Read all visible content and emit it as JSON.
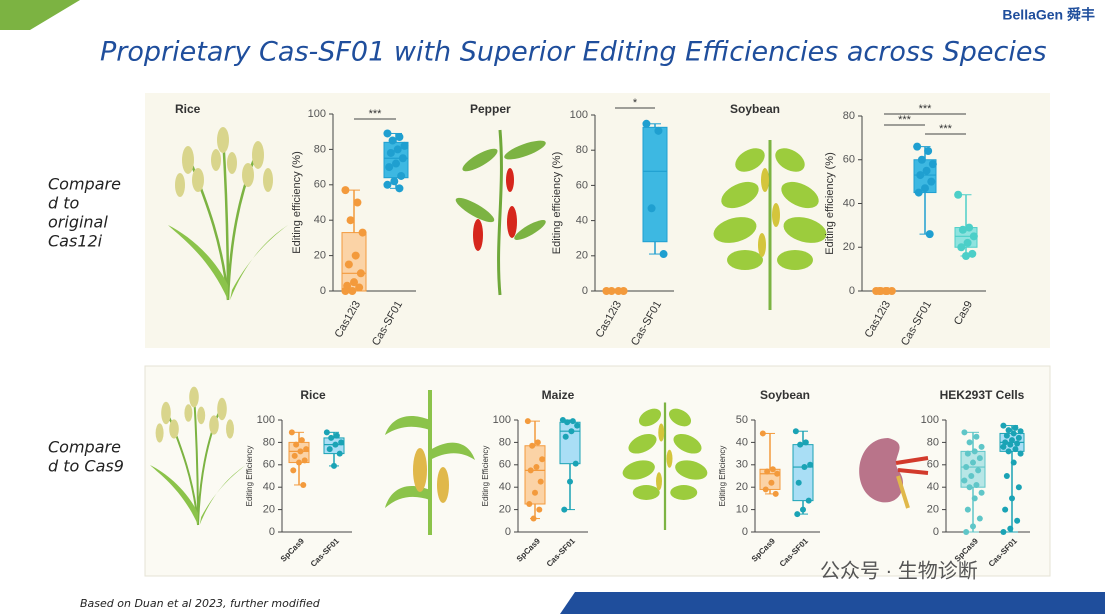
{
  "header": {
    "brand": "BellaGen 舜丰",
    "title": "Proprietary Cas-SF01 with Superior Editing Efficiencies across Species"
  },
  "row_labels": [
    {
      "lines": [
        "Compare",
        "d to",
        "original",
        "Cas12i"
      ]
    },
    {
      "lines": [
        "Compare",
        "d to Cas9"
      ]
    }
  ],
  "footnote": "Based on Duan et al 2023, further modified",
  "watermark": "公众号 · 生物诊断",
  "chart_data": [
    {
      "type": "box",
      "title": "Rice",
      "ylabel": "Editing efficiency (%)",
      "ylim": [
        0,
        100
      ],
      "yticks": [
        0,
        20,
        40,
        60,
        80,
        100
      ],
      "categories": [
        "Cas12i3",
        "Cas-SF01"
      ],
      "boxes": [
        {
          "min": 0,
          "q1": 0,
          "median": 10,
          "q3": 33,
          "max": 57,
          "color": "#f39a3c",
          "fill": "#fbd3a6",
          "points": [
            57,
            50,
            40,
            33,
            20,
            15,
            10,
            5,
            3,
            2,
            0,
            0
          ]
        },
        {
          "min": 58,
          "q1": 64,
          "median": 75,
          "q3": 84,
          "max": 89,
          "color": "#1f9fd0",
          "fill": "#3db8e2",
          "points": [
            89,
            87,
            85,
            82,
            80,
            78,
            75,
            72,
            70,
            65,
            62,
            60,
            58
          ]
        }
      ],
      "significance": [
        "***"
      ]
    },
    {
      "type": "box",
      "title": "Pepper",
      "ylabel": "Editing efficiency (%)",
      "ylim": [
        0,
        100
      ],
      "yticks": [
        0,
        20,
        40,
        60,
        80,
        100
      ],
      "categories": [
        "Cas12i3",
        "Cas-SF01"
      ],
      "boxes": [
        {
          "min": 0,
          "q1": 0,
          "median": 0,
          "q3": 0,
          "max": 0,
          "color": "#f39a3c",
          "fill": "#fbd3a6",
          "points": [
            0,
            0,
            0,
            0
          ]
        },
        {
          "min": 21,
          "q1": 28,
          "median": 68,
          "q3": 93,
          "max": 95,
          "color": "#1f9fd0",
          "fill": "#3db8e2",
          "points": [
            95,
            91,
            47,
            21
          ]
        }
      ],
      "significance": [
        "*"
      ]
    },
    {
      "type": "box",
      "title": "Soybean",
      "ylabel": "Editing efficiency (%)",
      "ylim": [
        0,
        80
      ],
      "yticks": [
        0,
        20,
        40,
        60,
        80
      ],
      "categories": [
        "Cas12i3",
        "Cas-SF01",
        "Cas9"
      ],
      "boxes": [
        {
          "min": 0,
          "q1": 0,
          "median": 0,
          "q3": 0,
          "max": 0,
          "color": "#f39a3c",
          "fill": "#fbd3a6",
          "points": [
            0,
            0,
            0,
            0,
            0,
            0
          ]
        },
        {
          "min": 26,
          "q1": 45,
          "median": 53,
          "q3": 60,
          "max": 66,
          "color": "#1f9fd0",
          "fill": "#3db8e2",
          "points": [
            66,
            64,
            60,
            58,
            55,
            53,
            50,
            47,
            45,
            26
          ]
        },
        {
          "min": 16,
          "q1": 20,
          "median": 25,
          "q3": 29,
          "max": 44,
          "color": "#4ccfc8",
          "fill": "#8fe3df",
          "points": [
            44,
            29,
            28,
            25,
            22,
            20,
            17,
            16
          ]
        }
      ],
      "significance": [
        "***",
        "***",
        "***"
      ]
    },
    {
      "type": "box",
      "title": "Rice",
      "ylabel": "Editing Efficiency",
      "ylim": [
        0,
        100
      ],
      "yticks": [
        0,
        20,
        40,
        60,
        80,
        100
      ],
      "categories": [
        "SpCas9",
        "Cas-SF01"
      ],
      "boxes": [
        {
          "min": 42,
          "q1": 62,
          "median": 72,
          "q3": 80,
          "max": 89,
          "color": "#f39a3c",
          "fill": "#fbd3a6",
          "points": [
            89,
            82,
            78,
            74,
            72,
            68,
            64,
            62,
            55,
            42
          ]
        },
        {
          "min": 59,
          "q1": 70,
          "median": 78,
          "q3": 84,
          "max": 89,
          "color": "#1aa3b5",
          "fill": "#a9def5",
          "points": [
            89,
            86,
            84,
            80,
            78,
            74,
            70,
            59
          ]
        }
      ],
      "significance": []
    },
    {
      "type": "box",
      "title": "Maize",
      "ylabel": "Editing Efficiency",
      "ylim": [
        0,
        100
      ],
      "yticks": [
        0,
        20,
        40,
        60,
        80,
        100
      ],
      "categories": [
        "SpCas9",
        "Cas-SF01"
      ],
      "boxes": [
        {
          "min": 12,
          "q1": 25,
          "median": 55,
          "q3": 77,
          "max": 99,
          "color": "#f39a3c",
          "fill": "#fbd3a6",
          "points": [
            99,
            80,
            77,
            65,
            58,
            55,
            45,
            35,
            25,
            20,
            12
          ]
        },
        {
          "min": 20,
          "q1": 61,
          "median": 90,
          "q3": 98,
          "max": 100,
          "color": "#1aa3b5",
          "fill": "#a9def5",
          "points": [
            100,
            99,
            98,
            95,
            90,
            85,
            61,
            45,
            20
          ]
        }
      ],
      "significance": []
    },
    {
      "type": "box",
      "title": "Soybean",
      "ylabel": "Editing Efficiency",
      "ylim": [
        0,
        50
      ],
      "yticks": [
        0,
        10,
        20,
        30,
        40,
        50
      ],
      "categories": [
        "SpCas9",
        "Cas-SF01"
      ],
      "boxes": [
        {
          "min": 17,
          "q1": 19,
          "median": 26,
          "q3": 28,
          "max": 44,
          "color": "#f39a3c",
          "fill": "#fbd3a6",
          "points": [
            44,
            28,
            27,
            26,
            22,
            19,
            17
          ]
        },
        {
          "min": 8,
          "q1": 14,
          "median": 29,
          "q3": 39,
          "max": 45,
          "color": "#1aa3b5",
          "fill": "#a9def5",
          "points": [
            45,
            40,
            39,
            30,
            29,
            22,
            14,
            10,
            8
          ]
        }
      ],
      "significance": []
    },
    {
      "type": "box",
      "title": "HEK293T Cells",
      "ylabel": "",
      "ylim": [
        0,
        100
      ],
      "yticks": [
        0,
        20,
        40,
        60,
        80,
        100
      ],
      "categories": [
        "SpCas9",
        "Cas-SF01"
      ],
      "boxes": [
        {
          "min": 0,
          "q1": 40,
          "median": 58,
          "q3": 72,
          "max": 89,
          "color": "#5fc6c8",
          "fill": "#b7e6e6",
          "points": [
            89,
            85,
            80,
            76,
            72,
            70,
            66,
            62,
            58,
            55,
            50,
            46,
            42,
            40,
            35,
            30,
            20,
            12,
            5,
            0
          ]
        },
        {
          "min": 0,
          "q1": 72,
          "median": 80,
          "q3": 88,
          "max": 95,
          "color": "#1aa3b5",
          "fill": "#a9def5",
          "points": [
            95,
            93,
            91,
            90,
            88,
            86,
            84,
            82,
            80,
            79,
            78,
            76,
            74,
            72,
            70,
            62,
            50,
            40,
            30,
            20,
            10,
            3,
            0
          ]
        }
      ],
      "significance": []
    }
  ]
}
